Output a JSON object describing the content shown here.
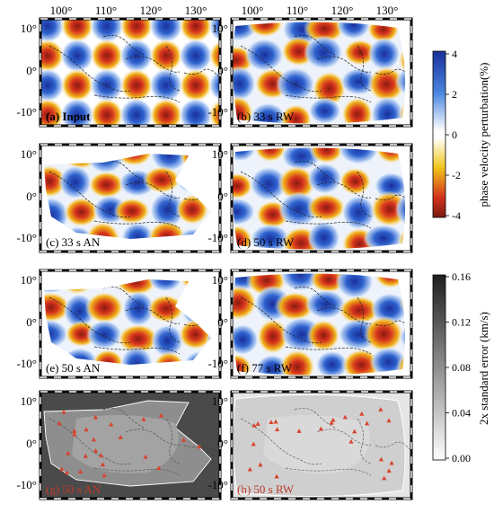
{
  "lon_ticks": [
    "100°",
    "110°",
    "120°",
    "130°"
  ],
  "lat_ticks": [
    "10°",
    "0°",
    "-10°"
  ],
  "panels": [
    {
      "id": "a",
      "label": "(a) Input",
      "type": "checkerboard",
      "bold": true
    },
    {
      "id": "b",
      "label": "(b) 33 s RW",
      "type": "recovery",
      "label_color": "#000000"
    },
    {
      "id": "c",
      "label": "(c) 33 s AN",
      "type": "recovery",
      "label_color": "#000000"
    },
    {
      "id": "d",
      "label": "(d) 50 s RW",
      "type": "recovery",
      "label_color": "#000000"
    },
    {
      "id": "e",
      "label": "(e) 50 s AN",
      "type": "recovery",
      "label_color": "#000000"
    },
    {
      "id": "f",
      "label": "(f) 77 s RW",
      "type": "recovery",
      "label_color": "#000000"
    },
    {
      "id": "g",
      "label": "(g) 50 s AN",
      "type": "error",
      "label_color": "#c0392b"
    },
    {
      "id": "h",
      "label": "(h) 50 s RW",
      "type": "error",
      "label_color": "#c0392b"
    }
  ],
  "colorbar_velocity": {
    "label": "phase velocity perturbation(%)",
    "ticks": [
      "4",
      "2",
      "0",
      "-2",
      "-4"
    ],
    "colors": [
      "#1a2f9a",
      "#4a86e0",
      "#ffffff",
      "#f2c51a",
      "#d3321c",
      "#7a1a10"
    ]
  },
  "colorbar_error": {
    "label": "2x standard error (km/s)",
    "ticks": [
      "0.16",
      "0.12",
      "0.08",
      "0.04",
      "0.00"
    ],
    "colors": [
      "#1e1e1e",
      "#ffffff"
    ]
  }
}
